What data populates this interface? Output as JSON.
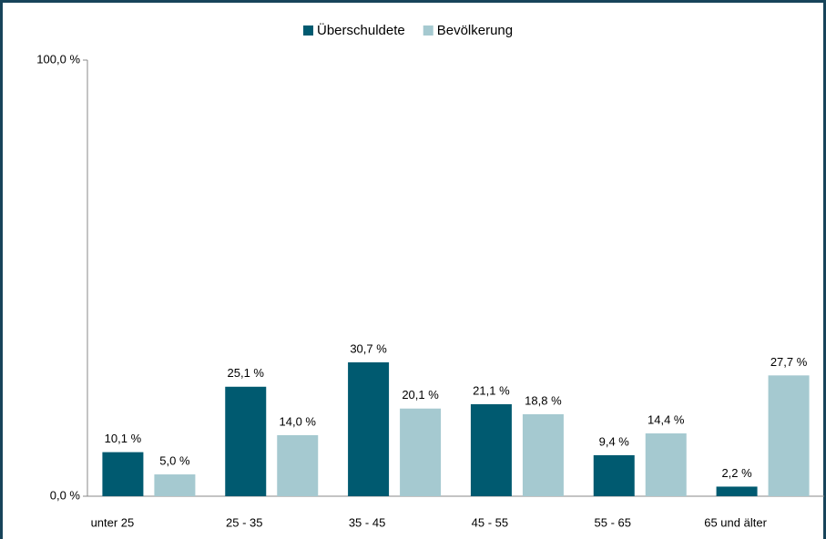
{
  "chart_data": {
    "type": "bar",
    "categories": [
      "unter 25",
      "25 - 35",
      "35 - 45",
      "45 - 55",
      "55 - 65",
      "65 und älter"
    ],
    "series": [
      {
        "name": "Überschuldete",
        "color": "#005a70",
        "values": [
          10.1,
          25.1,
          30.7,
          21.1,
          9.4,
          2.2
        ],
        "value_labels": [
          "10,1 %",
          "25,1 %",
          "30,7 %",
          "21,1 %",
          "9,4 %",
          "2,2 %"
        ]
      },
      {
        "name": "Bevölkerung",
        "color": "#a5c9d0",
        "values": [
          5.0,
          14.0,
          20.1,
          18.8,
          14.4,
          27.7
        ],
        "value_labels": [
          "5,0 %",
          "14,0 %",
          "20,1 %",
          "18,8 %",
          "14,4 %",
          "27,7 %"
        ]
      }
    ],
    "ylim": [
      0,
      100
    ],
    "yticks": [
      {
        "value": 0,
        "label": "0,0 %"
      },
      {
        "value": 100,
        "label": "100,0 %"
      }
    ],
    "legend": "top"
  }
}
